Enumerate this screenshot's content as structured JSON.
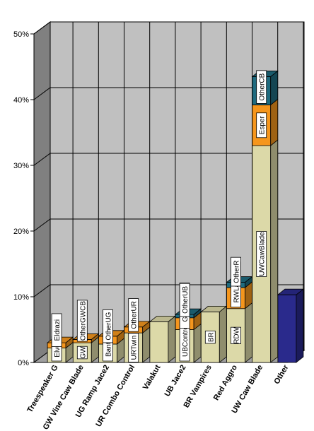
{
  "colors": {
    "base": "#dcd9a8",
    "orange": "#f5961d",
    "teal": "#1f6b7f",
    "navy": "#2a2a8c",
    "plot_back": "#c0c0c0",
    "left_wall": "#808080",
    "floor": "#a0a0a0"
  },
  "chart_data": {
    "type": "bar",
    "subtype": "3d-stacked",
    "title": "",
    "xlabel": "",
    "ylabel": "",
    "y_unit": "%",
    "ylim": [
      0,
      50
    ],
    "yticks": [
      "0%",
      "10%",
      "20%",
      "30%",
      "40%",
      "50%"
    ],
    "grid": true,
    "legend": "none",
    "categories": [
      "Treespeaker G",
      "GW Vine Caw Blade",
      "UG Ramp Jace2",
      "UR Combo Control",
      "Valakut",
      "UB Jace2",
      "BR Vampires",
      "Red Aggro",
      "UW Caw Blade",
      "Other"
    ],
    "bars": [
      {
        "category": "Treespeaker G",
        "segments": [
          {
            "label": "Elves",
            "value": 2.2,
            "color": "base"
          },
          {
            "label": "Eldrazi",
            "value": 0.8,
            "color": "orange"
          }
        ]
      },
      {
        "category": "GW Vine Caw Blade",
        "segments": [
          {
            "label": "GW",
            "value": 3.0,
            "color": "base"
          },
          {
            "label": "OtherGWCB",
            "value": 0.5,
            "color": "orange"
          }
        ]
      },
      {
        "category": "UG Ramp Jace2",
        "segments": [
          {
            "label": "BantVine",
            "value": 2.8,
            "color": "base"
          },
          {
            "label": "OtherUG",
            "value": 1.2,
            "color": "orange"
          }
        ]
      },
      {
        "category": "UR Combo Control",
        "segments": [
          {
            "label": "URTwin",
            "value": 4.5,
            "color": "base"
          },
          {
            "label": "OtherUR",
            "value": 0.9,
            "color": "orange"
          }
        ]
      },
      {
        "category": "Valakut",
        "segments": [
          {
            "label": "",
            "value": 6.2,
            "color": "base"
          }
        ]
      },
      {
        "category": "UB Jace2",
        "segments": [
          {
            "label": "UBControl",
            "value": 5.0,
            "color": "base"
          },
          {
            "label": "GrixisTwin",
            "value": 1.8,
            "color": "orange"
          },
          {
            "label": "OtherUB",
            "value": 0.5,
            "color": "teal"
          }
        ]
      },
      {
        "category": "BR Vampires",
        "segments": [
          {
            "label": "BR",
            "value": 7.7,
            "color": "base"
          }
        ]
      },
      {
        "category": "Red Aggro",
        "segments": [
          {
            "label": "RDW",
            "value": 8.2,
            "color": "base"
          },
          {
            "label": "RWLandfall",
            "value": 3.2,
            "color": "orange"
          },
          {
            "label": "OtherR",
            "value": 0.8,
            "color": "teal"
          }
        ]
      },
      {
        "category": "UW Caw Blade",
        "segments": [
          {
            "label": "UWCawBlade",
            "value": 33.0,
            "color": "base"
          },
          {
            "label": "Esper",
            "value": 6.2,
            "color": "orange"
          },
          {
            "label": "OtherCB",
            "value": 4.3,
            "color": "teal"
          }
        ]
      },
      {
        "category": "Other",
        "segments": [
          {
            "label": "",
            "value": 10.3,
            "color": "navy"
          }
        ]
      }
    ]
  }
}
